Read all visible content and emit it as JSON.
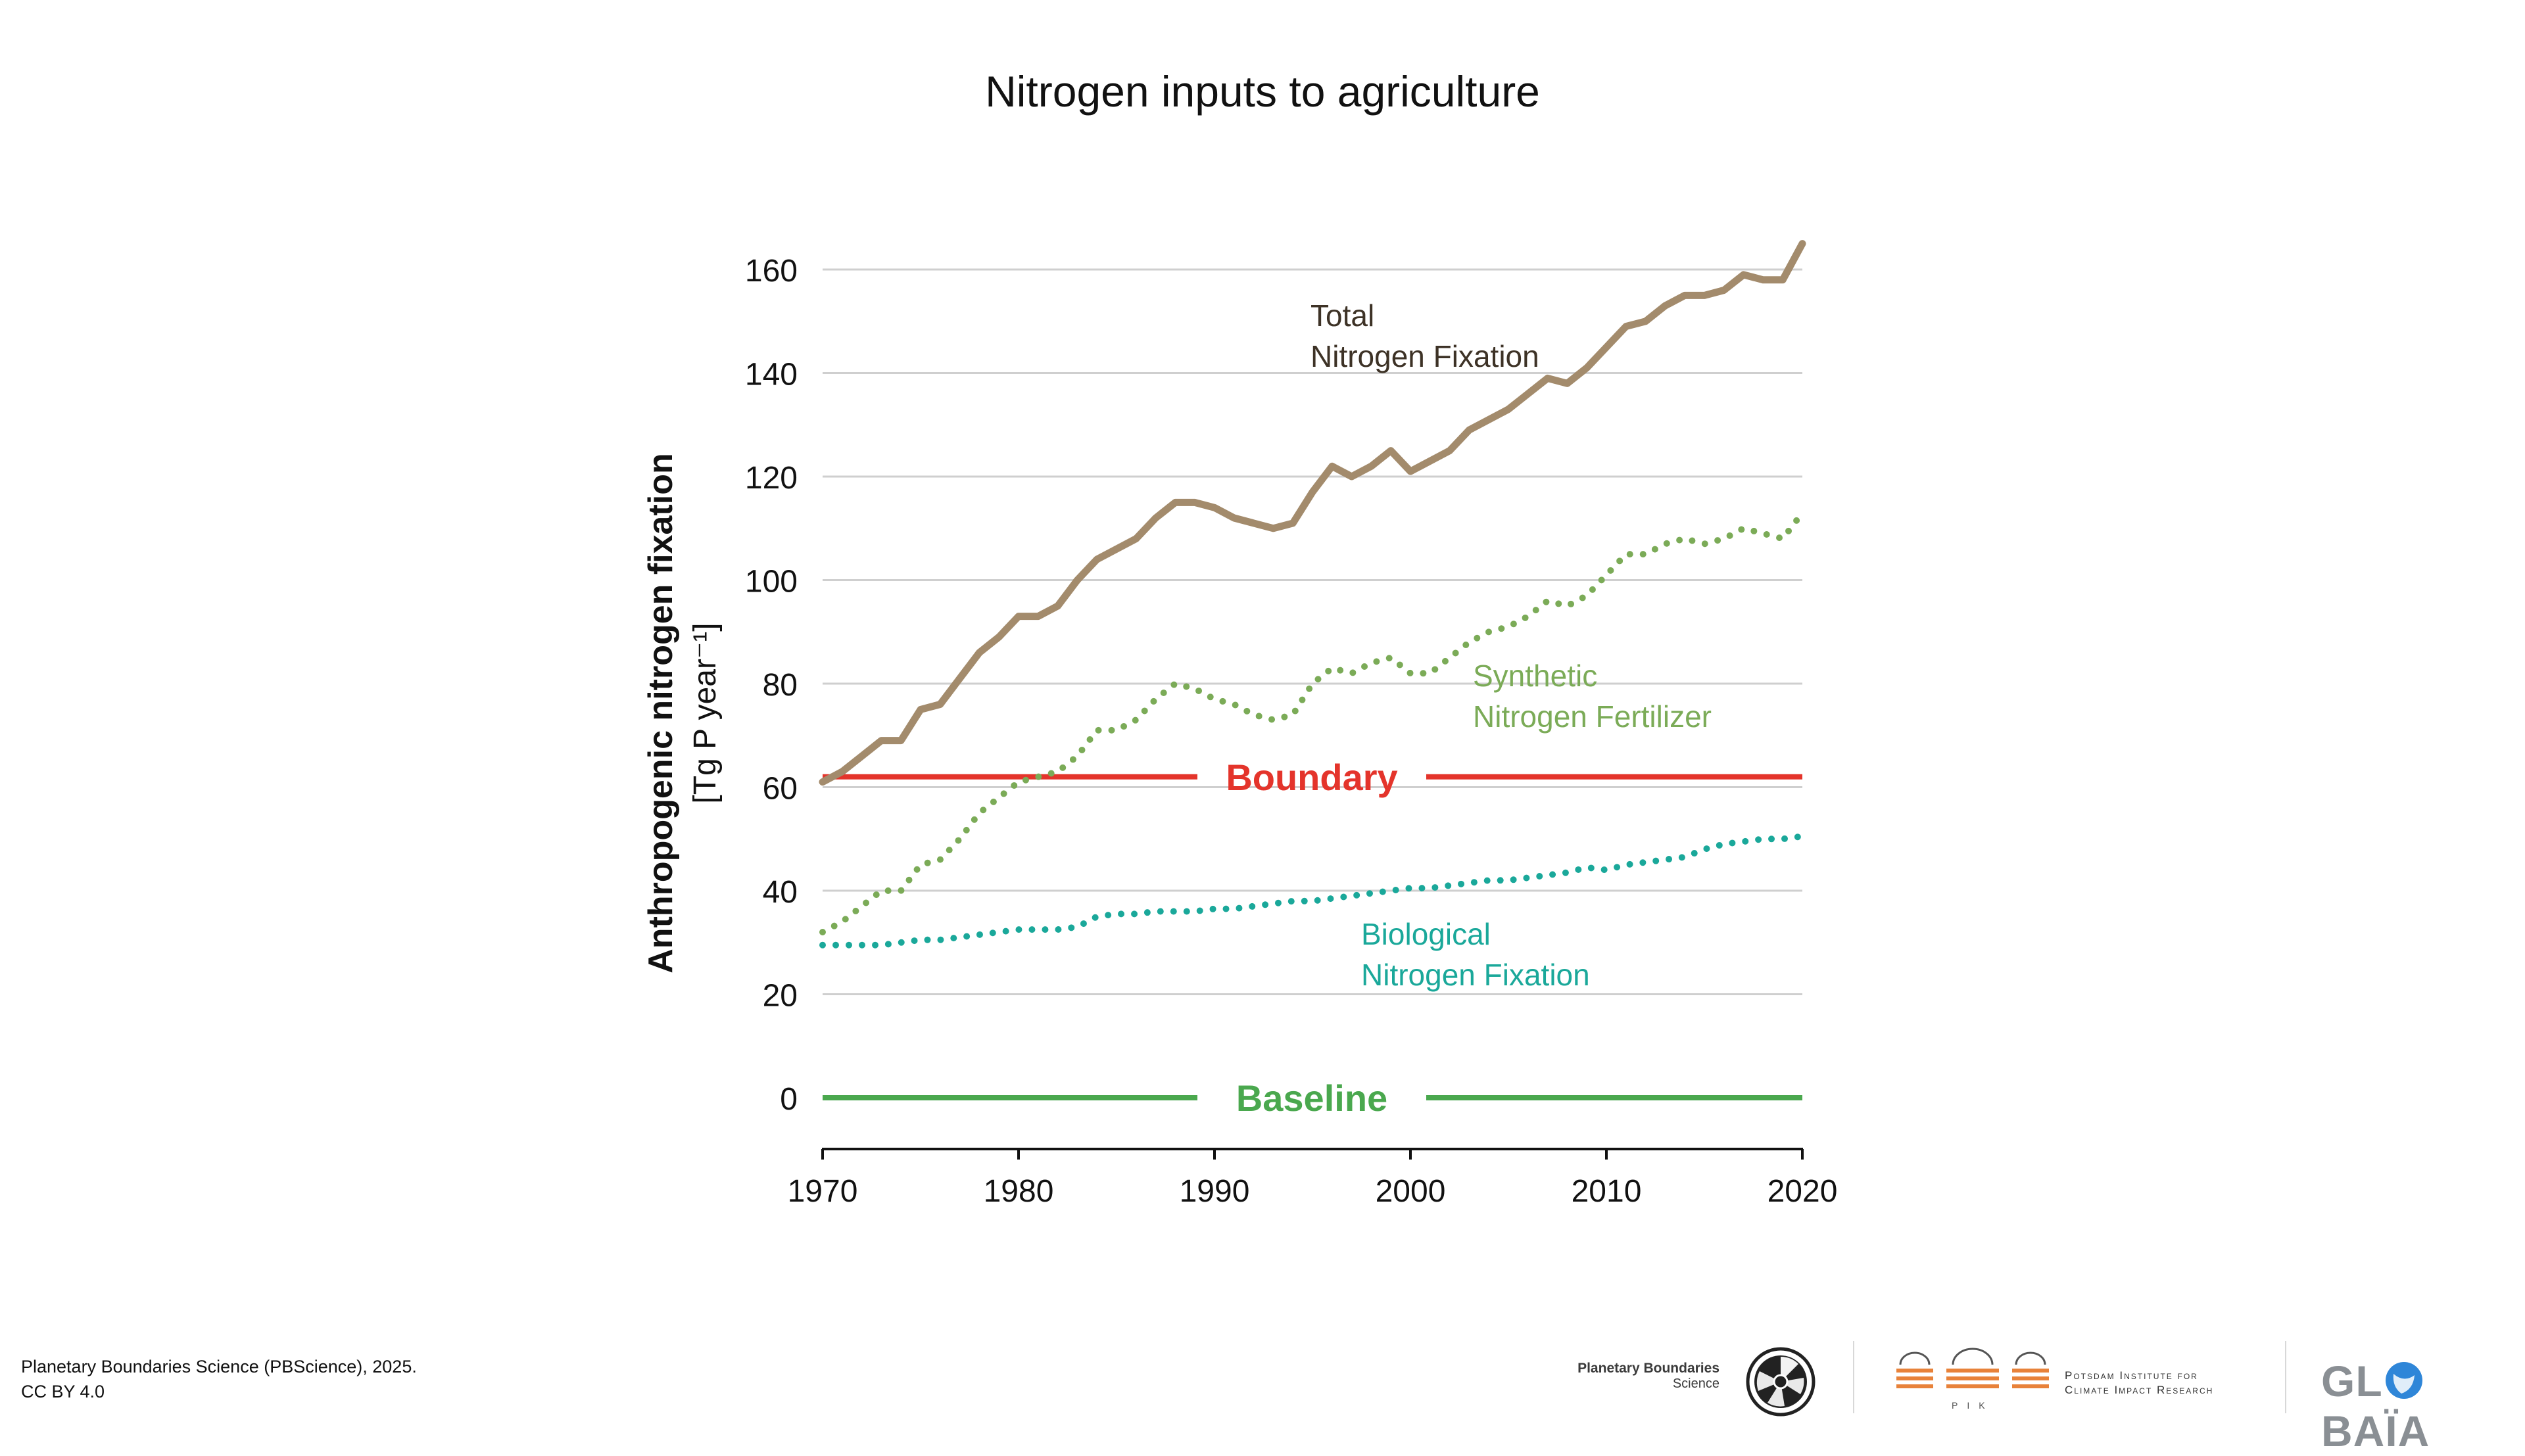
{
  "chart_data": {
    "type": "line",
    "title": "Nitrogen inputs to agriculture",
    "ylabel": "Anthropogenic nitrogen fixation",
    "ylabel_unit": "[Tg  P year⁻¹]",
    "xlabel": "",
    "xlim": [
      1970,
      2020
    ],
    "ylim": [
      -10,
      170
    ],
    "x_ticks": [
      1970,
      1980,
      1990,
      2000,
      2010,
      2020
    ],
    "y_ticks": [
      0,
      20,
      40,
      60,
      80,
      100,
      120,
      140,
      160
    ],
    "grid": "horizontal",
    "legend": "inline labels",
    "x": [
      1970,
      1971,
      1972,
      1973,
      1974,
      1975,
      1976,
      1977,
      1978,
      1979,
      1980,
      1981,
      1982,
      1983,
      1984,
      1985,
      1986,
      1987,
      1988,
      1989,
      1990,
      1991,
      1992,
      1993,
      1994,
      1995,
      1996,
      1997,
      1998,
      1999,
      2000,
      2001,
      2002,
      2003,
      2004,
      2005,
      2006,
      2007,
      2008,
      2009,
      2010,
      2011,
      2012,
      2013,
      2014,
      2015,
      2016,
      2017,
      2018,
      2019,
      2020
    ],
    "series": [
      {
        "name": "Total\nNitrogen Fixation",
        "color": "#a38b6c",
        "style": "solid",
        "values": [
          61,
          63,
          66,
          69,
          69,
          75,
          76,
          81,
          86,
          89,
          93,
          93,
          95,
          100,
          104,
          106,
          108,
          112,
          115,
          115,
          114,
          112,
          111,
          110,
          111,
          117,
          122,
          120,
          122,
          125,
          121,
          123,
          125,
          129,
          131,
          133,
          136,
          139,
          138,
          141,
          145,
          149,
          150,
          153,
          155,
          155,
          156,
          159,
          158,
          158,
          165
        ]
      },
      {
        "name": "Synthetic\nNitrogen Fertilizer",
        "color": "#7bab57",
        "style": "dotted",
        "values": [
          32,
          34,
          37,
          40,
          40,
          45,
          46,
          50,
          55,
          58,
          61,
          62,
          63,
          66,
          71,
          71,
          73,
          77,
          80,
          79,
          77,
          76,
          74,
          73,
          74,
          80,
          83,
          82,
          84,
          85,
          82,
          82,
          85,
          88,
          90,
          91,
          93,
          96,
          95,
          97,
          101,
          105,
          105,
          107,
          108,
          107,
          108,
          110,
          109,
          108,
          113
        ]
      },
      {
        "name": "Biological\nNitrogen Fixation",
        "color": "#1aa89a",
        "style": "dotted",
        "values": [
          29.5,
          29.5,
          29.5,
          29.5,
          30,
          30.5,
          30.5,
          31,
          31.5,
          32,
          32.5,
          32.5,
          32.5,
          33,
          35,
          35.5,
          35.5,
          36,
          36,
          36,
          36.5,
          36.5,
          37,
          37.5,
          38,
          38,
          38.5,
          39,
          39.5,
          40,
          40.5,
          40.5,
          41,
          41.5,
          42,
          42,
          42.5,
          43,
          43.5,
          44.5,
          44,
          45,
          45.5,
          46,
          46.5,
          48,
          49,
          49.5,
          50,
          50,
          50.5
        ]
      }
    ],
    "reference_lines": [
      {
        "name": "Boundary",
        "value": 62,
        "color": "#e4342b"
      },
      {
        "name": "Baseline",
        "value": 0,
        "color": "#4aa84e"
      }
    ]
  },
  "footer": {
    "credit_line1": "Planetary Boundaries Science (PBScience), 2025.",
    "credit_line2": "CC BY 4.0"
  },
  "logos": {
    "pb_line1": "Planetary Boundaries",
    "pb_line2": "Science",
    "pik_line1": "Potsdam Institute for",
    "pik_line2": "Climate Impact Research",
    "pik_sub": "PIK",
    "globaia_left": "GL",
    "globaia_right": "BAÏA"
  }
}
